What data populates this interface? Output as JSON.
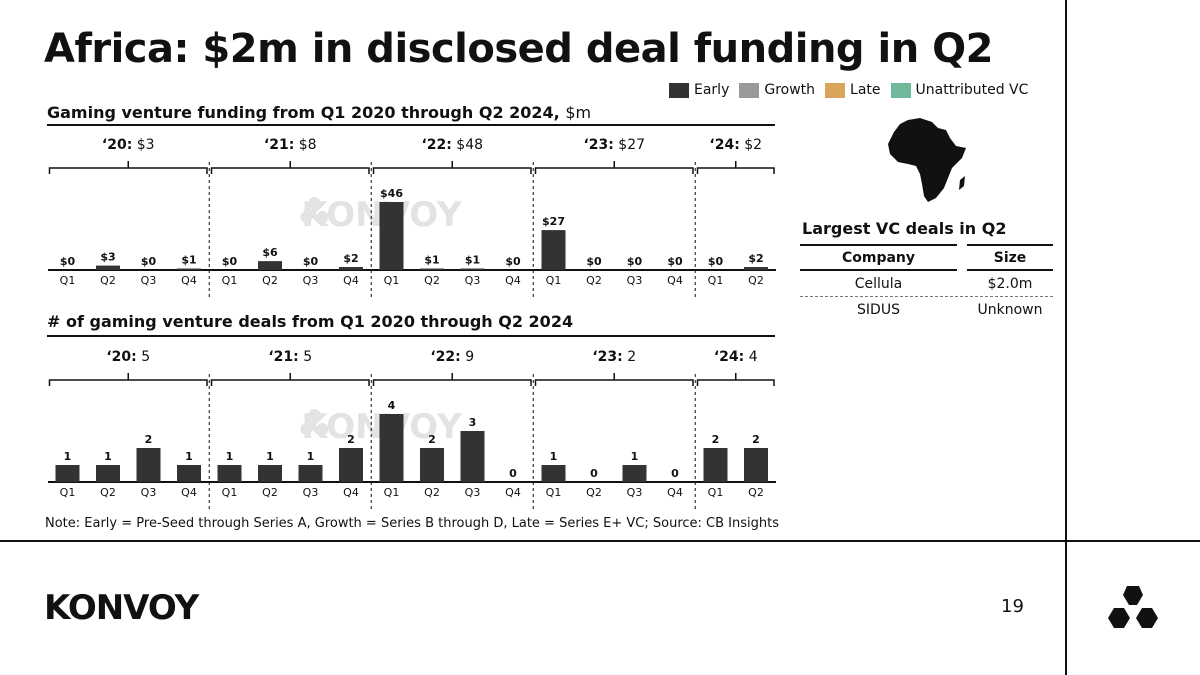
{
  "title": "Africa: $2m in disclosed deal funding in Q2",
  "legend": [
    {
      "label": "Early",
      "color": "#333333"
    },
    {
      "label": "Growth",
      "color": "#999999"
    },
    {
      "label": "Late",
      "color": "#d9a55b"
    },
    {
      "label": "Unattributed VC",
      "color": "#6fb89a"
    }
  ],
  "funding_title": "Gaming venture funding from Q1 2020 through Q2 2024,",
  "funding_unit": "$m",
  "deals_count_title": "# of gaming venture deals from Q1 2020 through Q2 2024",
  "chart_data": [
    {
      "type": "bar",
      "title": "Gaming venture funding from Q1 2020 through Q2 2024, $m",
      "categories": [
        "Q1",
        "Q2",
        "Q3",
        "Q4",
        "Q1",
        "Q2",
        "Q3",
        "Q4",
        "Q1",
        "Q2",
        "Q3",
        "Q4",
        "Q1",
        "Q2",
        "Q3",
        "Q4",
        "Q1",
        "Q2"
      ],
      "values": [
        0,
        3,
        0,
        1,
        0,
        6,
        0,
        2,
        46,
        1,
        1,
        0,
        27,
        0,
        0,
        0,
        0,
        2
      ],
      "value_labels": [
        "$0",
        "$3",
        "$0",
        "$1",
        "$0",
        "$6",
        "$0",
        "$2",
        "$46",
        "$1",
        "$1",
        "$0",
        "$27",
        "$0",
        "$0",
        "$0",
        "$0",
        "$2"
      ],
      "year_groups": [
        {
          "year": "‘20:",
          "total": "$3",
          "quarters": 4
        },
        {
          "year": "‘21:",
          "total": "$8",
          "quarters": 4
        },
        {
          "year": "‘22:",
          "total": "$48",
          "quarters": 4
        },
        {
          "year": "‘23:",
          "total": "$27",
          "quarters": 4
        },
        {
          "year": "‘24:",
          "total": "$2",
          "quarters": 2
        }
      ],
      "series": [
        {
          "name": "Early",
          "values": [
            0,
            3,
            0,
            1,
            0,
            6,
            0,
            2,
            46,
            1,
            1,
            0,
            27,
            0,
            0,
            0,
            0,
            2
          ]
        }
      ],
      "ylim": [
        0,
        46
      ],
      "watermark": "KONVOY",
      "xlabel": "",
      "ylabel": ""
    },
    {
      "type": "bar",
      "title": "# of gaming venture deals from Q1 2020 through Q2 2024",
      "categories": [
        "Q1",
        "Q2",
        "Q3",
        "Q4",
        "Q1",
        "Q2",
        "Q3",
        "Q4",
        "Q1",
        "Q2",
        "Q3",
        "Q4",
        "Q1",
        "Q2",
        "Q3",
        "Q4",
        "Q1",
        "Q2"
      ],
      "values": [
        1,
        1,
        2,
        1,
        1,
        1,
        1,
        2,
        4,
        2,
        3,
        0,
        1,
        0,
        1,
        0,
        2,
        2
      ],
      "value_labels": [
        "1",
        "1",
        "2",
        "1",
        "1",
        "1",
        "1",
        "2",
        "4",
        "2",
        "3",
        "0",
        "1",
        "0",
        "1",
        "0",
        "2",
        "2"
      ],
      "year_groups": [
        {
          "year": "‘20:",
          "total": "5",
          "quarters": 4
        },
        {
          "year": "‘21:",
          "total": "5",
          "quarters": 4
        },
        {
          "year": "‘22:",
          "total": "9",
          "quarters": 4
        },
        {
          "year": "‘23:",
          "total": "2",
          "quarters": 4
        },
        {
          "year": "‘24:",
          "total": "4",
          "quarters": 2
        }
      ],
      "series": [
        {
          "name": "Early",
          "values": [
            1,
            1,
            2,
            1,
            1,
            1,
            1,
            2,
            4,
            2,
            3,
            0,
            1,
            0,
            1,
            0,
            2,
            2
          ]
        }
      ],
      "ylim": [
        0,
        4
      ],
      "watermark": "KONVOY",
      "xlabel": "",
      "ylabel": ""
    }
  ],
  "deals": {
    "title": "Largest VC deals in Q2",
    "headers": {
      "company": "Company",
      "size": "Size"
    },
    "rows": [
      {
        "company": "Cellula",
        "size": "$2.0m"
      },
      {
        "company": "SIDUS",
        "size": "Unknown"
      }
    ]
  },
  "note": "Note: Early = Pre-Seed through Series A, Growth = Series B through D, Late = Series E+ VC; Source: CB Insights",
  "footer": {
    "logo": "KONVOY",
    "page": "19"
  }
}
